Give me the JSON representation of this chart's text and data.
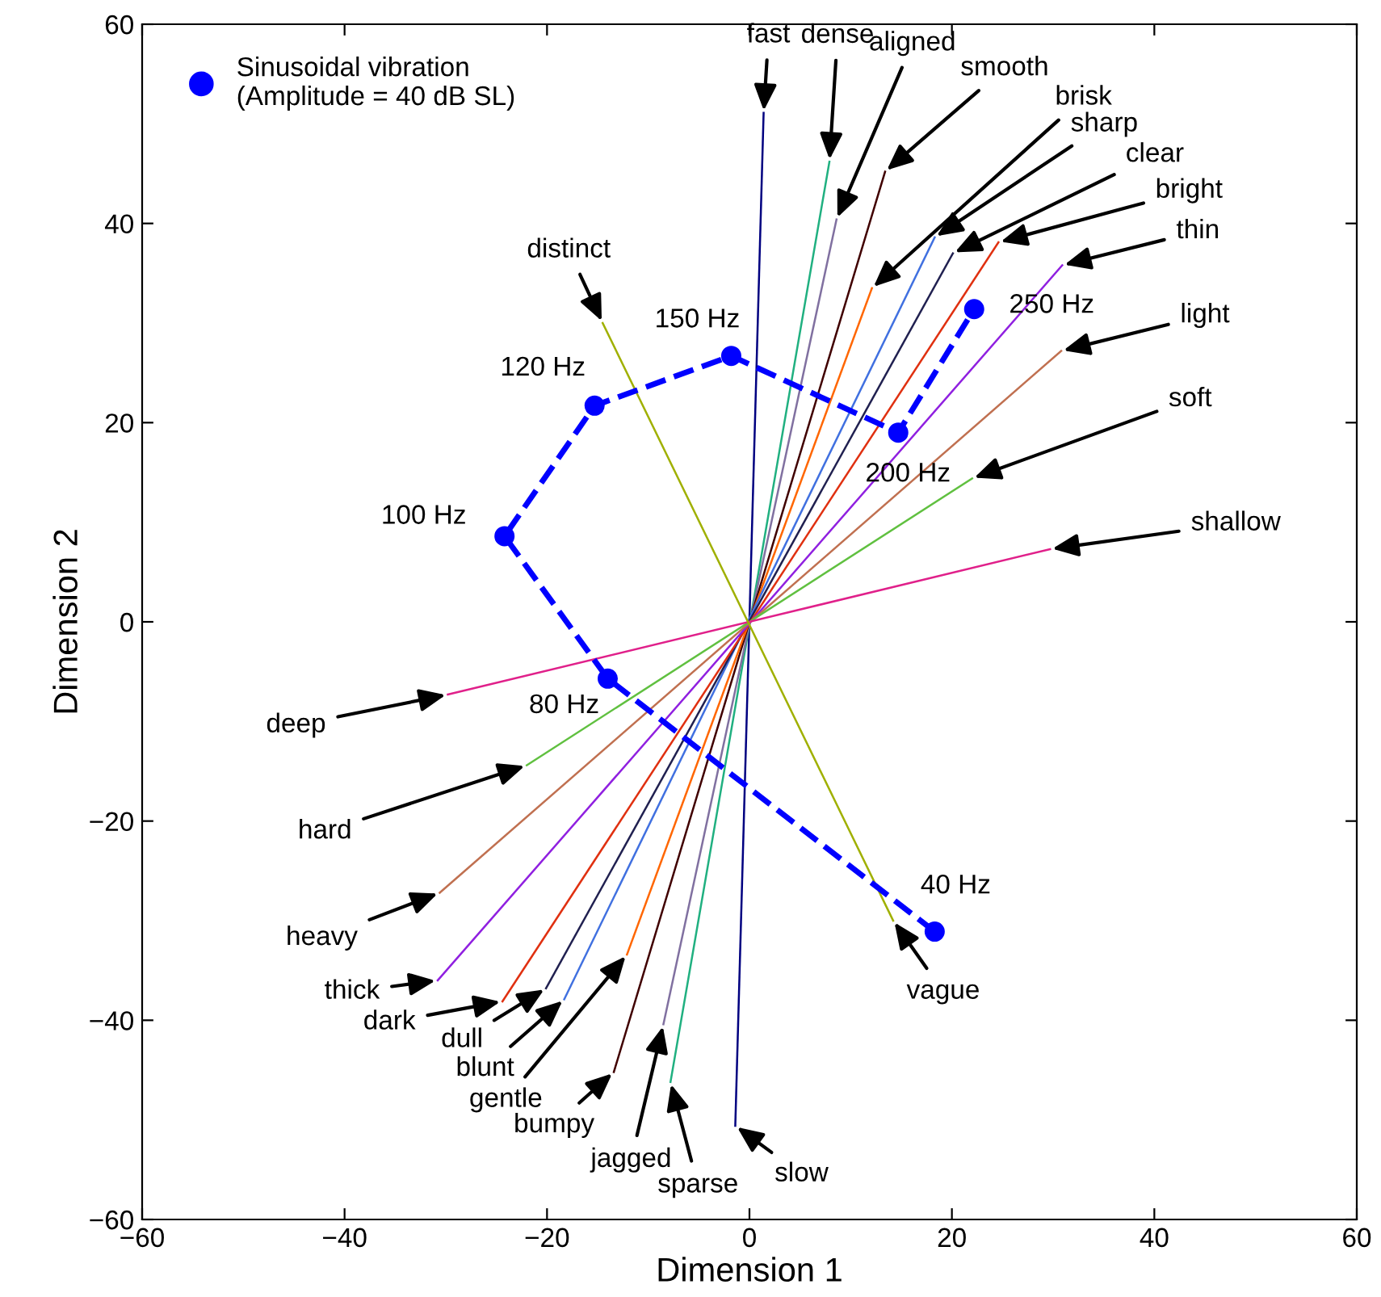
{
  "chart_data": {
    "type": "line",
    "xlabel": "Dimension 1",
    "ylabel": "Dimension 2",
    "xlim": [
      -60,
      60
    ],
    "ylim": [
      -60,
      60
    ],
    "xticks": [
      -60,
      -40,
      -20,
      0,
      20,
      40,
      60
    ],
    "yticks": [
      -60,
      -40,
      -20,
      0,
      20,
      40,
      60
    ],
    "grid": false,
    "legend": "top left",
    "series": [
      {
        "name": "Sinusoidal vibration\n(Amplitude = 40 dB SL)",
        "color": "#0000ff",
        "marker": "circle",
        "line_style": "dashed",
        "x": [
          18.3,
          -14.0,
          -24.2,
          -15.3,
          -1.8,
          14.7,
          22.2
        ],
        "values": [
          -31.1,
          -5.7,
          8.6,
          21.7,
          26.7,
          19.0,
          31.4
        ]
      },
      {
        "color": "#000080",
        "marker": "none",
        "line_style": "solid",
        "x": [
          1.4,
          -1.4
        ],
        "values": [
          51.1,
          -50.6
        ]
      },
      {
        "color": "#20b080",
        "marker": "none",
        "line_style": "solid",
        "x": [
          7.9,
          -7.8
        ],
        "values": [
          46.2,
          -46.2
        ]
      },
      {
        "color": "#8070a0",
        "marker": "none",
        "line_style": "solid",
        "x": [
          8.6,
          -8.5
        ],
        "values": [
          40.4,
          -40.4
        ]
      },
      {
        "color": "#400000",
        "marker": "none",
        "line_style": "solid",
        "x": [
          13.4,
          -13.4
        ],
        "values": [
          45.2,
          -45.2
        ]
      },
      {
        "color": "#ff6600",
        "marker": "none",
        "line_style": "solid",
        "x": [
          12.1,
          -12.1
        ],
        "values": [
          33.5,
          -33.4
        ]
      },
      {
        "color": "#4070e0",
        "marker": "none",
        "line_style": "solid",
        "x": [
          18.3,
          -18.3
        ],
        "values": [
          38.6,
          -37.9
        ]
      },
      {
        "color": "#202050",
        "marker": "none",
        "line_style": "solid",
        "x": [
          20.1,
          -20.1
        ],
        "values": [
          37.0,
          -36.8
        ]
      },
      {
        "color": "#e03010",
        "marker": "none",
        "line_style": "solid",
        "x": [
          24.6,
          -24.4
        ],
        "values": [
          38.1,
          -38.1
        ]
      },
      {
        "color": "#9020e0",
        "marker": "none",
        "line_style": "solid",
        "x": [
          30.9,
          -30.8
        ],
        "values": [
          35.8,
          -36.0
        ]
      },
      {
        "color": "#c07050",
        "marker": "none",
        "line_style": "solid",
        "x": [
          30.8,
          -30.6
        ],
        "values": [
          27.2,
          -27.2
        ]
      },
      {
        "color": "#60c040",
        "marker": "none",
        "line_style": "solid",
        "x": [
          22.0,
          -22.0
        ],
        "values": [
          14.4,
          -14.4
        ]
      },
      {
        "color": "#e0208a",
        "marker": "none",
        "line_style": "solid",
        "x": [
          29.7,
          -29.8
        ],
        "values": [
          7.3,
          -7.3
        ]
      },
      {
        "color": "#a0b000",
        "marker": "none",
        "line_style": "solid",
        "x": [
          -14.5,
          14.2
        ],
        "values": [
          30.0,
          -30.0
        ]
      }
    ],
    "annotations": [
      {
        "text": "fast",
        "x": 1.4,
        "y": 51.1
      },
      {
        "text": "dense",
        "x": 7.9,
        "y": 46.2
      },
      {
        "text": "aligned",
        "x": 8.6,
        "y": 40.4
      },
      {
        "text": "smooth",
        "x": 13.4,
        "y": 45.2
      },
      {
        "text": "brisk",
        "x": 12.1,
        "y": 33.5
      },
      {
        "text": "sharp",
        "x": 18.3,
        "y": 38.6
      },
      {
        "text": "clear",
        "x": 20.1,
        "y": 37.0
      },
      {
        "text": "bright",
        "x": 24.6,
        "y": 38.1
      },
      {
        "text": "thin",
        "x": 30.9,
        "y": 35.8
      },
      {
        "text": "light",
        "x": 30.8,
        "y": 27.2
      },
      {
        "text": "soft",
        "x": 22.0,
        "y": 14.4
      },
      {
        "text": "shallow",
        "x": 29.7,
        "y": 7.3
      },
      {
        "text": "distinct",
        "x": -14.5,
        "y": 30.0
      },
      {
        "text": "slow",
        "x": -1.4,
        "y": -50.6
      },
      {
        "text": "sparse",
        "x": -7.8,
        "y": -46.2
      },
      {
        "text": "jagged",
        "x": -8.5,
        "y": -40.4
      },
      {
        "text": "bumpy",
        "x": -13.4,
        "y": -45.2
      },
      {
        "text": "gentle",
        "x": -12.1,
        "y": -33.4
      },
      {
        "text": "blunt",
        "x": -18.3,
        "y": -37.9
      },
      {
        "text": "dull",
        "x": -20.1,
        "y": -36.8
      },
      {
        "text": "dark",
        "x": -24.4,
        "y": -38.1
      },
      {
        "text": "thick",
        "x": -30.8,
        "y": -36.0
      },
      {
        "text": "heavy",
        "x": -30.6,
        "y": -27.2
      },
      {
        "text": "hard",
        "x": -22.0,
        "y": -14.4
      },
      {
        "text": "deep",
        "x": -29.8,
        "y": -7.3
      },
      {
        "text": "vague",
        "x": 14.2,
        "y": -30.0
      },
      {
        "text": "40 Hz",
        "x": 18.3,
        "y": -31.1
      },
      {
        "text": "80 Hz",
        "x": -14.0,
        "y": -5.7
      },
      {
        "text": "100 Hz",
        "x": -24.2,
        "y": 8.6
      },
      {
        "text": "120 Hz",
        "x": -15.3,
        "y": 21.7
      },
      {
        "text": "150 Hz",
        "x": -1.8,
        "y": 26.7
      },
      {
        "text": "200 Hz",
        "x": 14.7,
        "y": 19.0
      },
      {
        "text": "250 Hz",
        "x": 22.2,
        "y": 31.4
      }
    ]
  }
}
